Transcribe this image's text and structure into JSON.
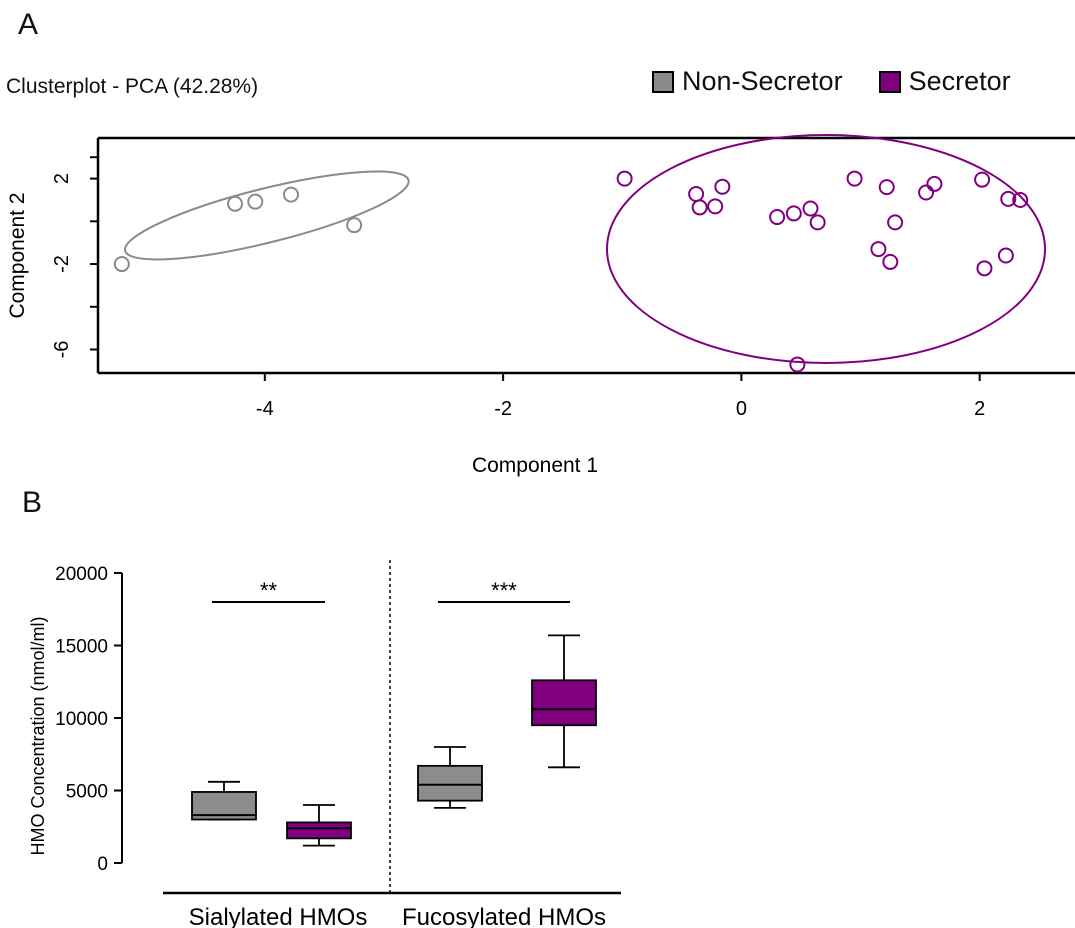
{
  "panel_a": {
    "letter": "A",
    "subtitle": "Clusterplot - PCA (42.28%)",
    "legend": [
      {
        "label": "Non-Secretor",
        "color": "#8a8a8a"
      },
      {
        "label": "Secretor",
        "color": "#800080"
      }
    ]
  },
  "panel_b": {
    "letter": "B"
  },
  "colors": {
    "non_secretor": "#8a8a8a",
    "secretor": "#800080",
    "non_secretor_box": "#8c8c8c",
    "secretor_box": "#800080"
  },
  "chart_data": [
    {
      "type": "scatter",
      "title": "Clusterplot - PCA (42.28%)",
      "xlabel": "Component 1",
      "ylabel": "Component 2",
      "xlim": [
        -5.4,
        2.8
      ],
      "ylim": [
        -7.1,
        3.9
      ],
      "xticks": [
        "-4",
        "-2",
        "0",
        "2"
      ],
      "yticks": [
        "2",
        "-2",
        "-6"
      ],
      "series": [
        {
          "name": "Non-Secretor",
          "color": "#8a8a8a",
          "points": [
            [
              -5.2,
              -2.0
            ],
            [
              -4.25,
              0.82
            ],
            [
              -4.08,
              0.92
            ],
            [
              -3.78,
              1.25
            ],
            [
              -3.25,
              -0.18
            ]
          ],
          "ellipse": {
            "cx": -4.0,
            "cy": -0.1,
            "rx": 1.25,
            "ry": 1.65,
            "rotation": -14
          }
        },
        {
          "name": "Secretor",
          "color": "#800080",
          "points": [
            [
              -0.98,
              2.0
            ],
            [
              -0.38,
              1.28
            ],
            [
              -0.35,
              0.65
            ],
            [
              -0.22,
              0.7
            ],
            [
              -0.16,
              1.62
            ],
            [
              0.3,
              0.2
            ],
            [
              0.44,
              0.37
            ],
            [
              0.58,
              0.6
            ],
            [
              0.64,
              -0.05
            ],
            [
              0.95,
              2.0
            ],
            [
              1.15,
              -1.3
            ],
            [
              1.22,
              1.6
            ],
            [
              1.25,
              -1.9
            ],
            [
              1.29,
              -0.05
            ],
            [
              1.55,
              1.35
            ],
            [
              1.62,
              1.75
            ],
            [
              2.02,
              1.95
            ],
            [
              2.04,
              -2.2
            ],
            [
              2.22,
              -1.6
            ],
            [
              2.24,
              1.05
            ],
            [
              2.34,
              1.0
            ],
            [
              0.47,
              -6.7
            ]
          ]
        }
      ]
    },
    {
      "type": "box",
      "title": "",
      "xlabel": "",
      "ylabel": "HMO Concentration (nmol/ml)",
      "ylim": [
        0,
        20000
      ],
      "yticks": [
        "0",
        "5000",
        "10000",
        "15000",
        "20000"
      ],
      "groups": [
        "Sialylated HMOs",
        "Fucosylated HMOs"
      ],
      "series": [
        {
          "name": "Non-Secretor",
          "color": "#8c8c8c",
          "boxes": [
            {
              "group": "Sialylated HMOs",
              "min": 3000,
              "q1": 3000,
              "median": 3300,
              "q3": 4900,
              "max": 5600
            },
            {
              "group": "Fucosylated HMOs",
              "min": 3800,
              "q1": 4300,
              "median": 5400,
              "q3": 6700,
              "max": 8000
            }
          ]
        },
        {
          "name": "Secretor",
          "color": "#800080",
          "boxes": [
            {
              "group": "Sialylated HMOs",
              "min": 1200,
              "q1": 1700,
              "median": 2400,
              "q3": 2800,
              "max": 4000
            },
            {
              "group": "Fucosylated HMOs",
              "min": 6600,
              "q1": 9500,
              "median": 10600,
              "q3": 12600,
              "max": 15700
            }
          ]
        }
      ],
      "significance": [
        {
          "group": "Sialylated HMOs",
          "label": "**",
          "value": 18000
        },
        {
          "group": "Fucosylated HMOs",
          "label": "***",
          "value": 18000
        }
      ]
    }
  ]
}
